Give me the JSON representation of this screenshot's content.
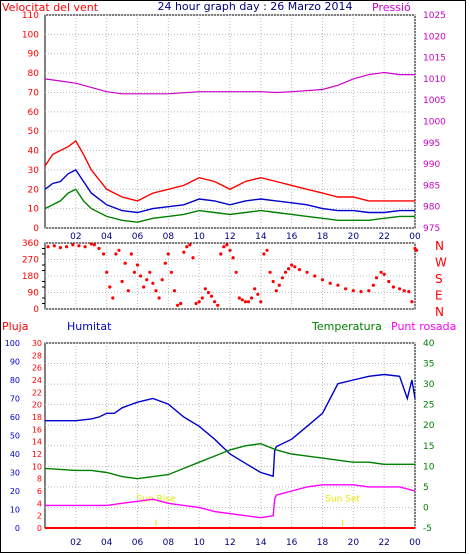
{
  "title": "24 hour graph day : 26 Marzo 2014",
  "colors": {
    "wind": "#ff0000",
    "gust": "#ff0000",
    "avg": "#0000cc",
    "min": "#008000",
    "pressure": "#cc00cc",
    "direction": "#ff0000",
    "humidity": "#0000cc",
    "temperature": "#008000",
    "dewpoint": "#ff00ff",
    "rain": "#ff0000",
    "sun": "#e8e800",
    "border": "#000000"
  },
  "chart_data": [
    {
      "type": "line",
      "name": "wind-pressure",
      "title": "24 hour graph day : 26 Marzo 2014",
      "left_label": "Velocitat del vent",
      "right_label": "Pressió",
      "x_ticks": [
        "02",
        "04",
        "06",
        "08",
        "10",
        "12",
        "14",
        "16",
        "18",
        "20",
        "22",
        "00"
      ],
      "x_tick_hours": [
        2,
        4,
        6,
        8,
        10,
        12,
        14,
        16,
        18,
        20,
        22,
        24
      ],
      "x_range": [
        0,
        24
      ],
      "y_left_range": [
        0,
        110
      ],
      "y_left_ticks": [
        "0",
        "10",
        "20",
        "30",
        "40",
        "50",
        "60",
        "70",
        "80",
        "90",
        "100",
        "110"
      ],
      "y_right_range": [
        975,
        1025
      ],
      "y_right_ticks": [
        "975",
        "980",
        "985",
        "990",
        "995",
        "1000",
        "1005",
        "1010",
        "1015",
        "1020",
        "1025"
      ],
      "series": [
        {
          "key": "gust",
          "x": [
            0,
            0.5,
            1,
            1.5,
            2,
            2.5,
            3,
            4,
            5,
            6,
            7,
            8,
            9,
            10,
            11,
            12,
            13,
            14,
            15,
            16,
            17,
            18,
            19,
            20,
            21,
            22,
            23,
            24
          ],
          "y": [
            32,
            38,
            40,
            42,
            45,
            38,
            30,
            20,
            16,
            14,
            18,
            20,
            22,
            26,
            24,
            20,
            24,
            26,
            24,
            22,
            20,
            18,
            16,
            16,
            14,
            14,
            14,
            14
          ]
        },
        {
          "key": "avg",
          "x": [
            0,
            0.5,
            1,
            1.5,
            2,
            2.5,
            3,
            4,
            5,
            6,
            7,
            8,
            9,
            10,
            11,
            12,
            13,
            14,
            15,
            16,
            17,
            18,
            19,
            20,
            21,
            22,
            23,
            24
          ],
          "y": [
            20,
            23,
            24,
            28,
            30,
            24,
            18,
            12,
            9,
            8,
            10,
            11,
            12,
            15,
            14,
            12,
            14,
            15,
            14,
            13,
            12,
            10,
            9,
            9,
            8,
            8,
            9,
            9
          ]
        },
        {
          "key": "min",
          "x": [
            0,
            0.5,
            1,
            1.5,
            2,
            2.5,
            3,
            4,
            5,
            6,
            7,
            8,
            9,
            10,
            11,
            12,
            13,
            14,
            15,
            16,
            17,
            18,
            19,
            20,
            21,
            22,
            23,
            24
          ],
          "y": [
            10,
            12,
            14,
            18,
            20,
            14,
            10,
            6,
            4,
            3,
            5,
            6,
            7,
            9,
            8,
            7,
            8,
            9,
            8,
            7,
            6,
            5,
            4,
            4,
            4,
            5,
            6,
            6
          ]
        },
        {
          "key": "pressure",
          "x": [
            0,
            1,
            2,
            3,
            4,
            5,
            6,
            8,
            10,
            12,
            14,
            15,
            16,
            18,
            19,
            20,
            21,
            22,
            23,
            24
          ],
          "y": [
            1010,
            1009.5,
            1009,
            1008,
            1007,
            1006.5,
            1006.5,
            1006.5,
            1007,
            1007,
            1007,
            1006.8,
            1007,
            1007.5,
            1008.5,
            1010,
            1011,
            1011.5,
            1011,
            1011
          ]
        }
      ]
    },
    {
      "type": "scatter",
      "name": "wind-direction",
      "right_labels": [
        "N",
        "W",
        "S",
        "E",
        "N"
      ],
      "x_range": [
        0,
        24
      ],
      "y_range": [
        0,
        360
      ],
      "y_ticks": [
        "0",
        "90",
        "180",
        "270",
        "360"
      ],
      "y_minor_ticks": [
        "30",
        "60",
        "120",
        "150",
        "210",
        "240",
        "300",
        "330"
      ],
      "points": [
        [
          0.2,
          340
        ],
        [
          0.6,
          345
        ],
        [
          1.0,
          335
        ],
        [
          1.4,
          340
        ],
        [
          1.8,
          350
        ],
        [
          2.2,
          345
        ],
        [
          2.6,
          340
        ],
        [
          3.0,
          355
        ],
        [
          3.2,
          350
        ],
        [
          3.5,
          330
        ],
        [
          3.8,
          300
        ],
        [
          4.0,
          200
        ],
        [
          4.2,
          120
        ],
        [
          4.4,
          60
        ],
        [
          4.6,
          300
        ],
        [
          4.8,
          320
        ],
        [
          5.0,
          150
        ],
        [
          5.2,
          250
        ],
        [
          5.4,
          100
        ],
        [
          5.6,
          300
        ],
        [
          5.8,
          200
        ],
        [
          6.0,
          240
        ],
        [
          6.2,
          180
        ],
        [
          6.4,
          120
        ],
        [
          6.6,
          160
        ],
        [
          6.8,
          200
        ],
        [
          7.0,
          140
        ],
        [
          7.2,
          100
        ],
        [
          7.4,
          60
        ],
        [
          7.6,
          160
        ],
        [
          7.8,
          250
        ],
        [
          8.0,
          300
        ],
        [
          8.2,
          200
        ],
        [
          8.4,
          100
        ],
        [
          8.6,
          20
        ],
        [
          8.8,
          30
        ],
        [
          9.0,
          310
        ],
        [
          9.2,
          340
        ],
        [
          9.4,
          350
        ],
        [
          9.6,
          280
        ],
        [
          9.8,
          30
        ],
        [
          10.0,
          40
        ],
        [
          10.2,
          60
        ],
        [
          10.4,
          110
        ],
        [
          10.6,
          90
        ],
        [
          10.8,
          70
        ],
        [
          11.0,
          40
        ],
        [
          11.2,
          20
        ],
        [
          11.4,
          300
        ],
        [
          11.6,
          340
        ],
        [
          11.8,
          350
        ],
        [
          12.0,
          320
        ],
        [
          12.2,
          280
        ],
        [
          12.4,
          200
        ],
        [
          12.6,
          60
        ],
        [
          12.8,
          50
        ],
        [
          13.0,
          40
        ],
        [
          13.2,
          40
        ],
        [
          13.4,
          60
        ],
        [
          13.6,
          110
        ],
        [
          13.8,
          80
        ],
        [
          14.0,
          40
        ],
        [
          14.2,
          300
        ],
        [
          14.4,
          320
        ],
        [
          14.6,
          200
        ],
        [
          14.8,
          150
        ],
        [
          15.0,
          100
        ],
        [
          15.2,
          130
        ],
        [
          15.4,
          170
        ],
        [
          15.6,
          200
        ],
        [
          15.8,
          220
        ],
        [
          16.0,
          240
        ],
        [
          16.2,
          230
        ],
        [
          16.5,
          215
        ],
        [
          17.0,
          200
        ],
        [
          17.5,
          180
        ],
        [
          18.0,
          160
        ],
        [
          18.5,
          140
        ],
        [
          19.0,
          130
        ],
        [
          19.5,
          110
        ],
        [
          20.0,
          100
        ],
        [
          20.5,
          95
        ],
        [
          21.0,
          100
        ],
        [
          21.3,
          130
        ],
        [
          21.5,
          170
        ],
        [
          21.8,
          200
        ],
        [
          22.0,
          190
        ],
        [
          22.3,
          150
        ],
        [
          22.6,
          120
        ],
        [
          23.0,
          110
        ],
        [
          23.3,
          100
        ],
        [
          23.6,
          95
        ],
        [
          23.8,
          40
        ],
        [
          24.0,
          330
        ],
        [
          24.1,
          320
        ]
      ]
    },
    {
      "type": "line",
      "name": "humidity-temperature",
      "labels": {
        "rain": "Pluja",
        "humidity": "Humitat",
        "temperature": "Temperatura",
        "dewpoint": "Punt rosada"
      },
      "x_ticks": [
        "02",
        "04",
        "06",
        "08",
        "10",
        "12",
        "14",
        "16",
        "18",
        "20",
        "22",
        "00"
      ],
      "x_tick_hours": [
        2,
        4,
        6,
        8,
        10,
        12,
        14,
        16,
        18,
        20,
        22,
        24
      ],
      "x_range": [
        0,
        24
      ],
      "rain_range": [
        0,
        30
      ],
      "rain_ticks": [
        "0",
        "2",
        "4",
        "6",
        "8",
        "10",
        "12",
        "14",
        "16",
        "18",
        "20",
        "22",
        "24",
        "26",
        "28",
        "30"
      ],
      "humidity_range": [
        0,
        100
      ],
      "humidity_ticks": [
        "0",
        "10",
        "20",
        "30",
        "40",
        "50",
        "60",
        "70",
        "80",
        "90",
        "100"
      ],
      "temp_range": [
        -5,
        40
      ],
      "temp_ticks": [
        "-5",
        "0",
        "5",
        "10",
        "15",
        "20",
        "25",
        "30",
        "35",
        "40"
      ],
      "annotations": [
        {
          "text": "Sun Rise",
          "hour": 7.2
        },
        {
          "text": "Sun Set",
          "hour": 19.3
        }
      ],
      "series": [
        {
          "key": "humidity",
          "x": [
            0,
            1,
            2,
            3,
            3.5,
            4,
            4.5,
            5,
            6,
            7,
            8,
            9,
            10,
            11,
            12,
            13,
            14,
            14.8,
            14.9,
            15,
            16,
            17,
            18,
            18.5,
            19,
            20,
            21,
            22,
            23,
            23.5,
            23.8,
            24
          ],
          "y": [
            58,
            58,
            58,
            59,
            60,
            62,
            62,
            65,
            68,
            70,
            67,
            60,
            55,
            48,
            40,
            35,
            30,
            28,
            42,
            44,
            48,
            55,
            62,
            70,
            78,
            80,
            82,
            83,
            82,
            70,
            80,
            70
          ]
        },
        {
          "key": "temperature",
          "x": [
            0,
            2,
            3,
            4,
            5,
            6,
            7,
            8,
            9,
            10,
            11,
            12,
            13,
            14,
            15,
            16,
            17,
            18,
            19,
            20,
            21,
            22,
            23,
            24
          ],
          "y": [
            9.5,
            9,
            9,
            8.5,
            7.5,
            7,
            7.5,
            8,
            9.5,
            11,
            12.5,
            14,
            15,
            15.5,
            14,
            13,
            12.5,
            12,
            11.5,
            11,
            11,
            10.5,
            10.5,
            10.5
          ]
        },
        {
          "key": "dewpoint",
          "x": [
            0,
            1,
            2,
            3,
            4,
            5,
            6,
            7,
            8,
            9,
            10,
            11,
            12,
            13,
            14,
            14.8,
            14.9,
            15,
            16,
            17,
            18,
            19,
            20,
            21,
            22,
            23,
            24
          ],
          "y": [
            0.5,
            0.5,
            0.5,
            0.5,
            0.5,
            1,
            1.5,
            2,
            1,
            0.5,
            0,
            -1,
            -1.5,
            -2,
            -2.5,
            -2,
            2,
            3,
            4,
            5,
            5.5,
            5.5,
            5.5,
            5,
            5,
            5,
            4
          ]
        },
        {
          "key": "rain",
          "x": [
            0,
            24
          ],
          "y": [
            0,
            0
          ]
        }
      ]
    }
  ]
}
